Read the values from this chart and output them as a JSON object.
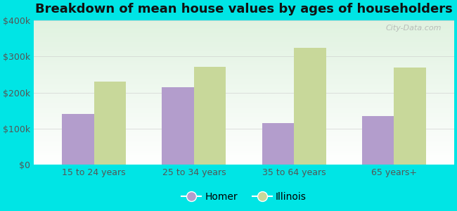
{
  "title": "Breakdown of mean house values by ages of householders",
  "categories": [
    "15 to 24 years",
    "25 to 34 years",
    "35 to 64 years",
    "65 years+"
  ],
  "homer_values": [
    140000,
    215000,
    115000,
    135000
  ],
  "illinois_values": [
    230000,
    272000,
    325000,
    270000
  ],
  "homer_color": "#b39dcc",
  "illinois_color": "#c8d89a",
  "background_color": "#00e5e5",
  "ylim": [
    0,
    400000
  ],
  "yticks": [
    0,
    100000,
    200000,
    300000,
    400000
  ],
  "ytick_labels": [
    "$0",
    "$100k",
    "$200k",
    "$300k",
    "$400k"
  ],
  "title_fontsize": 13,
  "tick_fontsize": 9,
  "legend_fontsize": 10,
  "grid_color": "#dddddd",
  "watermark": "City-Data.com",
  "legend_homer": "Homer",
  "legend_illinois": "Illinois"
}
